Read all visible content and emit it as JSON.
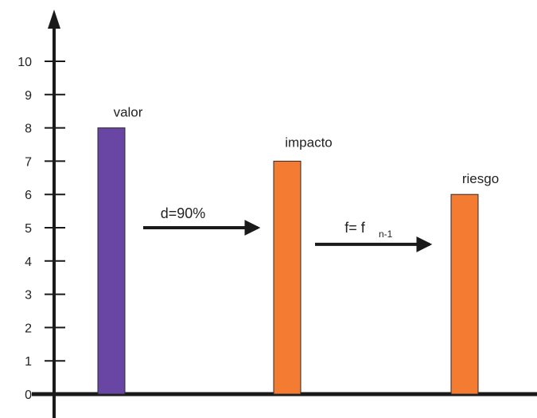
{
  "chart_data": {
    "type": "bar",
    "categories": [
      "valor",
      "impacto",
      "riesgo"
    ],
    "values": [
      8,
      7,
      6
    ],
    "colors": [
      "#6a46a4",
      "#f47b32",
      "#f47b32"
    ],
    "ylim": [
      0,
      10
    ],
    "yticks": [
      "0",
      "1",
      "2",
      "3",
      "4",
      "5",
      "6",
      "7",
      "8",
      "9",
      "10"
    ],
    "grid": false,
    "arrows": [
      {
        "label": "d=90%",
        "subscript": "",
        "from": "valor",
        "to": "impacto",
        "y": 5
      },
      {
        "label": "f= f",
        "subscript": "n-1",
        "from": "impacto",
        "to": "riesgo",
        "y": 4.5
      }
    ]
  }
}
